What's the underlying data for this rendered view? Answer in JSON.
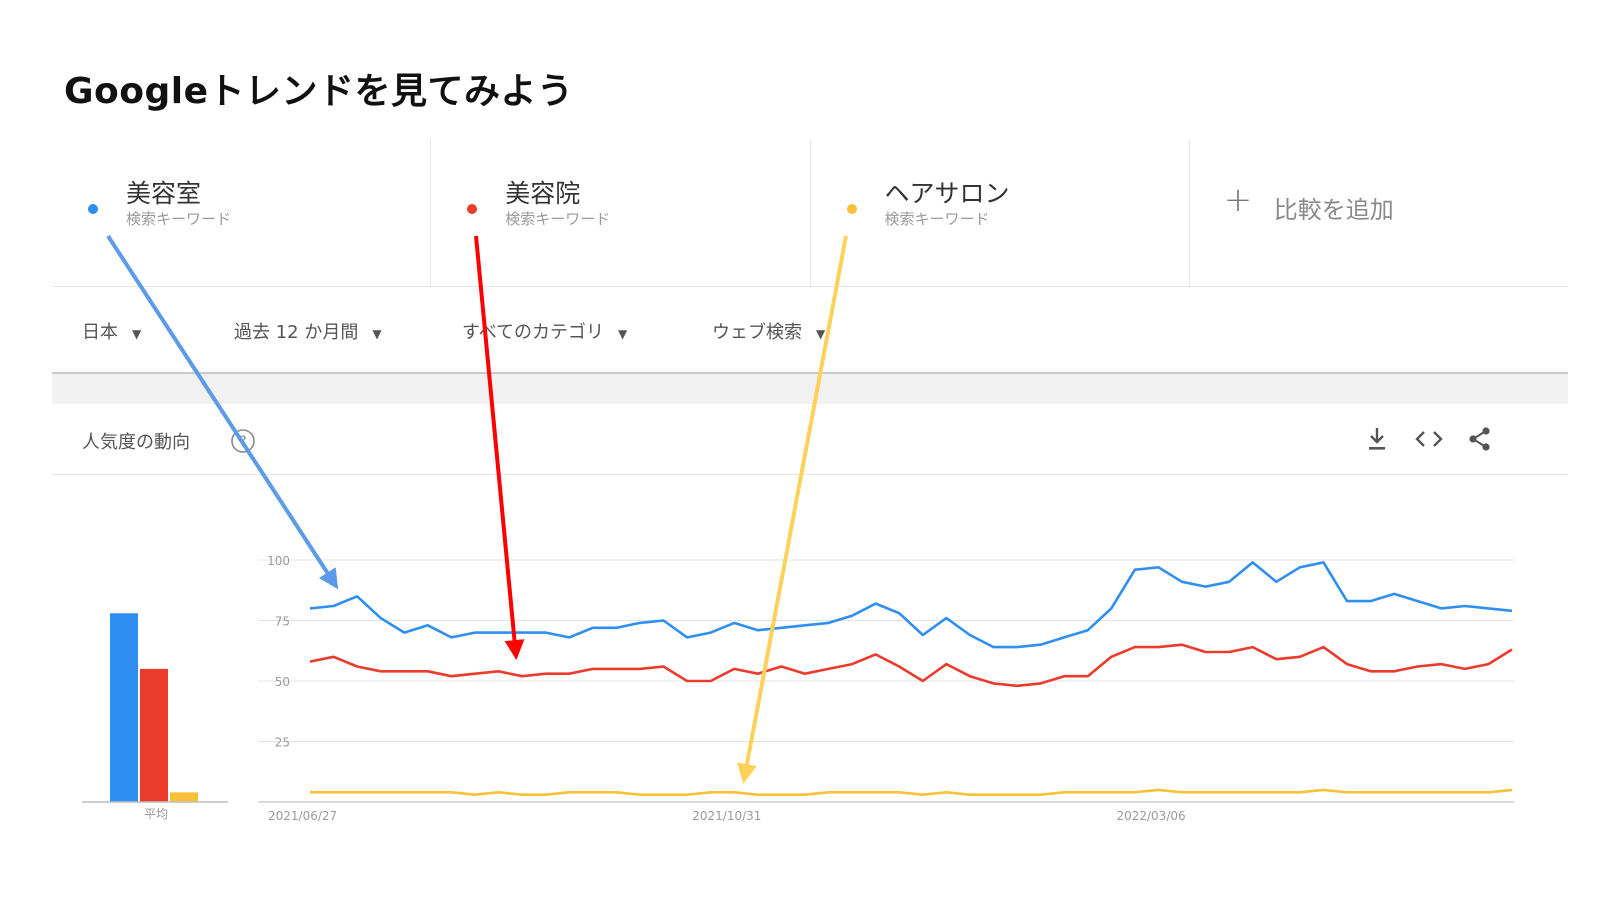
{
  "slide_title": "Googleトレンドを見てみよう",
  "colors": {
    "blue": "#2f8ff0",
    "red": "#ea3b2c",
    "yellow": "#f7c23a"
  },
  "keywords": [
    {
      "term": "美容室",
      "type": "検索キーワード",
      "color": "#2f8ff0"
    },
    {
      "term": "美容院",
      "type": "検索キーワード",
      "color": "#ea3b2c"
    },
    {
      "term": "ヘアサロン",
      "type": "検索キーワード",
      "color": "#f7c23a"
    }
  ],
  "add_compare": {
    "icon": "plus-icon",
    "label": "比較を追加"
  },
  "filters": {
    "region": "日本",
    "period": "過去 12 か月間",
    "category": "すべてのカテゴリ",
    "search_type": "ウェブ検索"
  },
  "card": {
    "title": "人気度の動向",
    "icons": [
      "help-icon",
      "download-icon",
      "embed-icon",
      "share-icon"
    ]
  },
  "chart_data": [
    {
      "type": "bar",
      "categories": [
        "美容室",
        "美容院",
        "ヘアサロン"
      ],
      "values": [
        78,
        55,
        4
      ],
      "xlabel": "平均",
      "ylim": [
        0,
        100
      ],
      "colors": [
        "#2f8ff0",
        "#ea3b2c",
        "#f7c23a"
      ]
    },
    {
      "type": "line",
      "ylim": [
        0,
        100
      ],
      "yticks": [
        25,
        50,
        75,
        100
      ],
      "xtick_labels": [
        "2021/06/27",
        "2021/10/31",
        "2022/03/06"
      ],
      "xtick_index": [
        0,
        18,
        36
      ],
      "grid": true,
      "series": [
        {
          "name": "美容室",
          "color": "#2f8ff0",
          "values": [
            80,
            81,
            85,
            76,
            70,
            73,
            68,
            70,
            70,
            70,
            70,
            68,
            72,
            72,
            74,
            75,
            68,
            70,
            74,
            71,
            72,
            73,
            74,
            77,
            82,
            78,
            69,
            76,
            69,
            64,
            64,
            65,
            68,
            71,
            80,
            96,
            97,
            91,
            89,
            91,
            99,
            91,
            97,
            99,
            83,
            83,
            86,
            83,
            80,
            81,
            80,
            79
          ]
        },
        {
          "name": "美容院",
          "color": "#ea3b2c",
          "values": [
            58,
            60,
            56,
            54,
            54,
            54,
            52,
            53,
            54,
            52,
            53,
            53,
            55,
            55,
            55,
            56,
            50,
            50,
            55,
            53,
            56,
            53,
            55,
            57,
            61,
            56,
            50,
            57,
            52,
            49,
            48,
            49,
            52,
            52,
            60,
            64,
            64,
            65,
            62,
            62,
            64,
            59,
            60,
            64,
            57,
            54,
            54,
            56,
            57,
            55,
            57,
            63
          ]
        },
        {
          "name": "ヘアサロン",
          "color": "#f7c23a",
          "values": [
            4,
            4,
            4,
            4,
            4,
            4,
            4,
            3,
            4,
            3,
            3,
            4,
            4,
            4,
            3,
            3,
            3,
            4,
            4,
            3,
            3,
            3,
            4,
            4,
            4,
            4,
            3,
            4,
            3,
            3,
            3,
            3,
            4,
            4,
            4,
            4,
            5,
            4,
            4,
            4,
            4,
            4,
            4,
            5,
            4,
            4,
            4,
            4,
            4,
            4,
            4,
            5
          ]
        }
      ]
    }
  ]
}
